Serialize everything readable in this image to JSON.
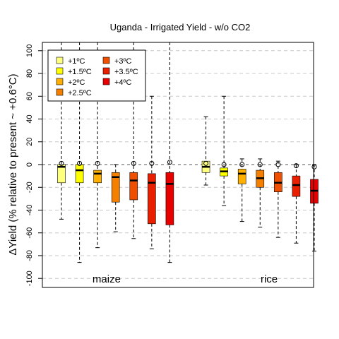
{
  "chart_data": {
    "type": "box",
    "title": "Uganda - Irrigated Yield - w/o CO2",
    "ylabel": "ΔYield (% relative to present ~ +0.6°C)",
    "xlabel": "",
    "ylim": [
      -105,
      107
    ],
    "yticks": [
      -100,
      -80,
      -60,
      -40,
      -20,
      0,
      20,
      40,
      60,
      80,
      100
    ],
    "grid": true,
    "legend_position": "top-left",
    "groups": [
      {
        "label": "maize",
        "x": 3.5
      },
      {
        "label": "rice",
        "x": 12.5
      }
    ],
    "series": [
      {
        "name": "+1ºC",
        "color": "#ffff80"
      },
      {
        "name": "+1.5ºC",
        "color": "#ffff00"
      },
      {
        "name": "+2ºC",
        "color": "#ffb000"
      },
      {
        "name": "+2.5ºC",
        "color": "#f58000"
      },
      {
        "name": "+3ºC",
        "color": "#ee5000"
      },
      {
        "name": "+3.5ºC",
        "color": "#e82000"
      },
      {
        "name": "+4ºC",
        "color": "#e80000"
      }
    ],
    "boxes": [
      {
        "crop": "maize",
        "x": 1,
        "series": 0,
        "whisker_low": -48,
        "q1": -16,
        "median": -2,
        "q3": 0,
        "whisker_high": 110,
        "mean": 1
      },
      {
        "crop": "maize",
        "x": 2,
        "series": 1,
        "whisker_low": -86,
        "q1": -16,
        "median": -5,
        "q3": 0,
        "whisker_high": 110,
        "mean": 1
      },
      {
        "crop": "maize",
        "x": 3,
        "series": 2,
        "whisker_low": -73,
        "q1": -16,
        "median": -8,
        "q3": -5,
        "whisker_high": 110,
        "mean": 1
      },
      {
        "crop": "maize",
        "x": 4,
        "series": 3,
        "whisker_low": -59,
        "q1": -33,
        "median": -11,
        "q3": -7,
        "whisker_high": 0,
        "mean": null
      },
      {
        "crop": "maize",
        "x": 5,
        "series": 4,
        "whisker_low": -65,
        "q1": -31,
        "median": -14,
        "q3": -7,
        "whisker_high": 110,
        "mean": 1
      },
      {
        "crop": "maize",
        "x": 6,
        "series": 5,
        "whisker_low": -74,
        "q1": -52,
        "median": -16,
        "q3": -8,
        "whisker_high": 60,
        "mean": 1
      },
      {
        "crop": "maize",
        "x": 7,
        "series": 6,
        "whisker_low": -86,
        "q1": -53,
        "median": -17,
        "q3": -7,
        "whisker_high": 110,
        "mean": 2
      },
      {
        "crop": "rice",
        "x": 9,
        "series": 0,
        "whisker_low": -18,
        "q1": -7,
        "median": -2,
        "q3": 3,
        "whisker_high": 42,
        "mean": 1
      },
      {
        "crop": "rice",
        "x": 10,
        "series": 1,
        "whisker_low": -36,
        "q1": -10,
        "median": -6,
        "q3": -3,
        "whisker_high": 60,
        "mean": 0
      },
      {
        "crop": "rice",
        "x": 11,
        "series": 2,
        "whisker_low": -50,
        "q1": -17,
        "median": -8,
        "q3": -4,
        "whisker_high": 5,
        "mean": 0
      },
      {
        "crop": "rice",
        "x": 12,
        "series": 3,
        "whisker_low": -55,
        "q1": -20,
        "median": -12,
        "q3": -5,
        "whisker_high": 5,
        "mean": 0
      },
      {
        "crop": "rice",
        "x": 13,
        "series": 4,
        "whisker_low": -64,
        "q1": -24,
        "median": -16,
        "q3": -7,
        "whisker_high": 3,
        "mean": 0
      },
      {
        "crop": "rice",
        "x": 14,
        "series": 5,
        "whisker_low": -69,
        "q1": -28,
        "median": -18,
        "q3": -10,
        "whisker_high": 0,
        "mean": -1
      },
      {
        "crop": "rice",
        "x": 15,
        "series": 6,
        "whisker_low": -76,
        "q1": -34,
        "median": -23,
        "q3": -13,
        "whisker_high": 0,
        "mean": -2
      }
    ]
  }
}
